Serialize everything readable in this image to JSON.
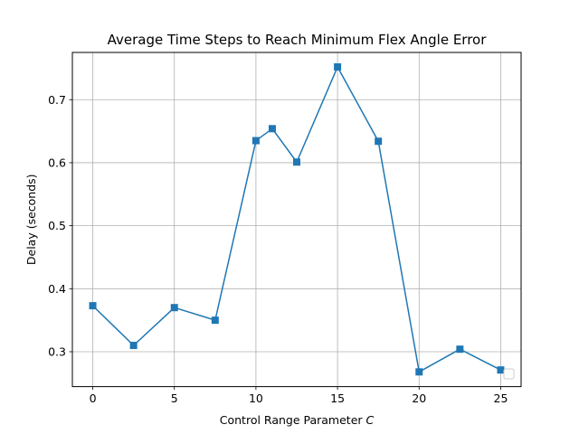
{
  "chart_data": {
    "type": "line",
    "title": "Average Time Steps to Reach Minimum Flex Angle Error",
    "xlabel_text": "Control Range Parameter ",
    "xlabel_italic": "C",
    "ylabel": "Delay (seconds)",
    "xlim": [
      -1.25,
      26.25
    ],
    "ylim": [
      0.2446,
      0.775
    ],
    "xticks": [
      0,
      5,
      10,
      15,
      20,
      25
    ],
    "xtick_labels": [
      "0",
      "5",
      "10",
      "15",
      "20",
      "25"
    ],
    "yticks": [
      0.3,
      0.4,
      0.5,
      0.6,
      0.7
    ],
    "ytick_labels": [
      "0.3",
      "0.4",
      "0.5",
      "0.6",
      "0.7"
    ],
    "grid": true,
    "legend": "lower-right (empty)",
    "series": [
      {
        "color": "#1f77b4",
        "marker": "square",
        "x": [
          0,
          2.5,
          5,
          7.5,
          10,
          11,
          12.5,
          15,
          17.5,
          20,
          22.5,
          25
        ],
        "y": [
          0.373,
          0.31,
          0.37,
          0.35,
          0.635,
          0.654,
          0.601,
          0.752,
          0.634,
          0.268,
          0.304,
          0.271
        ]
      }
    ]
  }
}
